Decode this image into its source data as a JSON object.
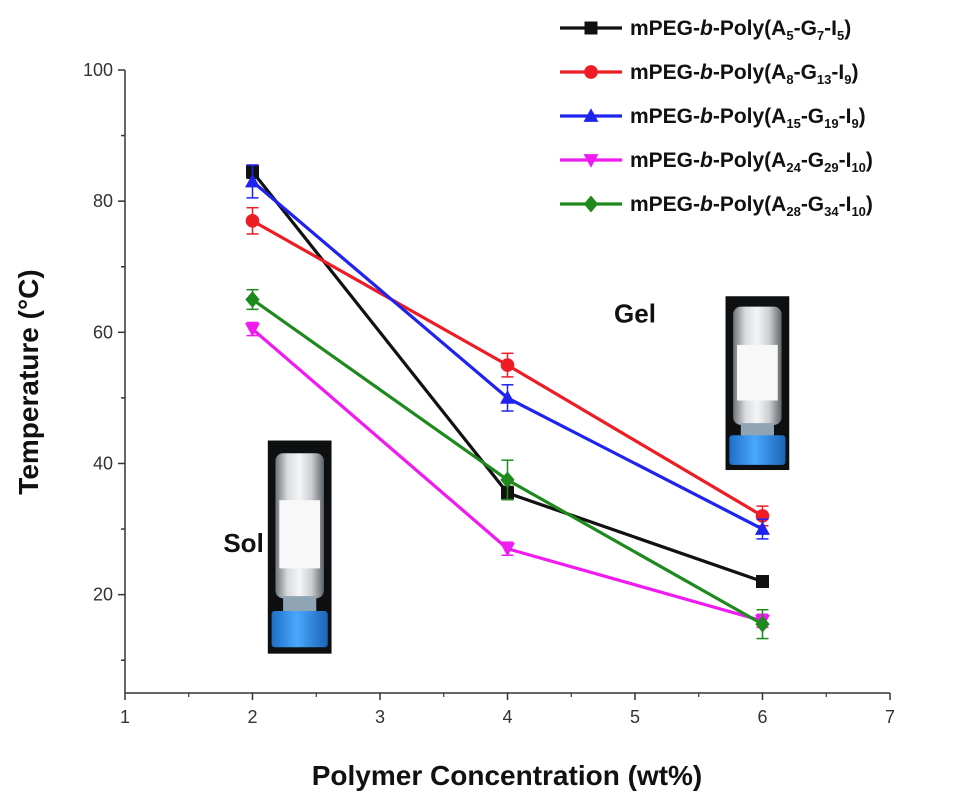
{
  "chart_data": {
    "type": "line",
    "title": "",
    "xlabel": "Polymer Concentration (wt%)",
    "ylabel": "Temperature (°C)",
    "xlim": [
      1,
      7
    ],
    "ylim": [
      5,
      100
    ],
    "xticks": [
      1,
      2,
      3,
      4,
      5,
      6,
      7
    ],
    "yticks": [
      20,
      40,
      60,
      80,
      100
    ],
    "grid": false,
    "legend_position": "top-right",
    "x": [
      2,
      4,
      6
    ],
    "series": [
      {
        "name": "mPEG-b-Poly(A5-G7-I5)",
        "legend_parts": [
          [
            "mPEG-",
            "n"
          ],
          [
            "b",
            "i"
          ],
          [
            "-Poly(A",
            "n"
          ],
          [
            "5",
            "s"
          ],
          [
            "-G",
            "n"
          ],
          [
            "7",
            "s"
          ],
          [
            "-I",
            "n"
          ],
          [
            "5",
            "s"
          ],
          [
            ")",
            "n"
          ]
        ],
        "color": "#111111",
        "marker": "square",
        "values": [
          84.5,
          35.5,
          22
        ],
        "errors": [
          1.0,
          1.0,
          0.8
        ]
      },
      {
        "name": "mPEG-b-Poly(A8-G13-I9)",
        "legend_parts": [
          [
            "mPEG-",
            "n"
          ],
          [
            "b",
            "i"
          ],
          [
            "-Poly(A",
            "n"
          ],
          [
            "8",
            "s"
          ],
          [
            "-G",
            "n"
          ],
          [
            "13",
            "s"
          ],
          [
            "-I",
            "n"
          ],
          [
            "9",
            "s"
          ],
          [
            ")",
            "n"
          ]
        ],
        "color": "#ee1c24",
        "marker": "circle",
        "values": [
          77,
          55,
          32
        ],
        "errors": [
          2.0,
          1.8,
          1.5
        ]
      },
      {
        "name": "mPEG-b-Poly(A15-G19-I9)",
        "legend_parts": [
          [
            "mPEG-",
            "n"
          ],
          [
            "b",
            "i"
          ],
          [
            "-Poly(A",
            "n"
          ],
          [
            "15",
            "s"
          ],
          [
            "-G",
            "n"
          ],
          [
            "19",
            "s"
          ],
          [
            "-I",
            "n"
          ],
          [
            "9",
            "s"
          ],
          [
            ")",
            "n"
          ]
        ],
        "color": "#1f23ee",
        "marker": "triangle-up",
        "values": [
          83,
          50,
          30
        ],
        "errors": [
          2.5,
          2.0,
          1.5
        ]
      },
      {
        "name": "mPEG-b-Poly(A24-G29-I10)",
        "legend_parts": [
          [
            "mPEG-",
            "n"
          ],
          [
            "b",
            "i"
          ],
          [
            "-Poly(A",
            "n"
          ],
          [
            "24",
            "s"
          ],
          [
            "-G",
            "n"
          ],
          [
            "29",
            "s"
          ],
          [
            "-I",
            "n"
          ],
          [
            "10",
            "s"
          ],
          [
            ")",
            "n"
          ]
        ],
        "color": "#f01bf0",
        "marker": "triangle-down",
        "values": [
          60.5,
          27,
          16
        ],
        "errors": [
          1.0,
          1.0,
          1.0
        ]
      },
      {
        "name": "mPEG-b-Poly(A28-G34-I10)",
        "legend_parts": [
          [
            "mPEG-",
            "n"
          ],
          [
            "b",
            "i"
          ],
          [
            "-Poly(A",
            "n"
          ],
          [
            "28",
            "s"
          ],
          [
            "-G",
            "n"
          ],
          [
            "34",
            "s"
          ],
          [
            "-I",
            "n"
          ],
          [
            "10",
            "s"
          ],
          [
            ")",
            "n"
          ]
        ],
        "color": "#1e8a1e",
        "marker": "diamond",
        "values": [
          65,
          37.5,
          15.5
        ],
        "errors": [
          1.5,
          3.0,
          2.2
        ]
      }
    ],
    "annotations": [
      {
        "text": "Sol",
        "x": 1.93,
        "y": 26.5
      },
      {
        "text": "Gel",
        "x": 5.0,
        "y": 61.5
      }
    ]
  },
  "photos": [
    {
      "name": "sol-vial-photo",
      "x_range": [
        2.12,
        2.62
      ],
      "y_range": [
        11,
        43.5
      ]
    },
    {
      "name": "gel-vial-photo",
      "x_range": [
        5.71,
        6.21
      ],
      "y_range": [
        39,
        65.5
      ]
    }
  ]
}
